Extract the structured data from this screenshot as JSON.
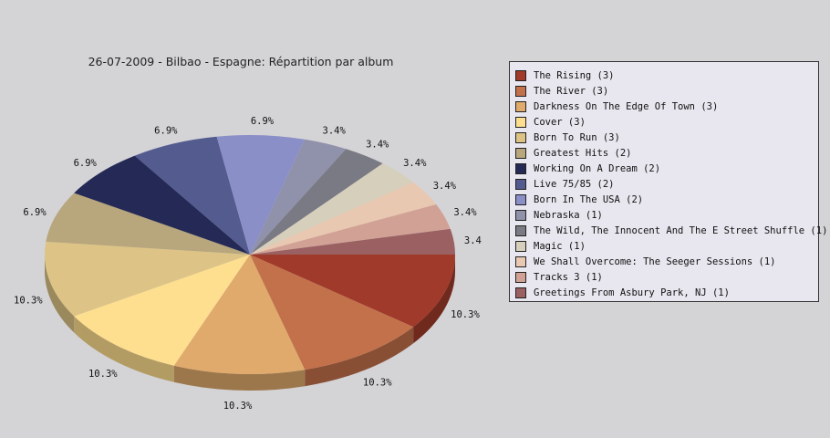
{
  "chart_data": {
    "type": "pie",
    "title": "26-07-2009 - Bilbao - Espagne:  Répartition par album",
    "legend_position": "right",
    "slices": [
      {
        "label": "The Rising (3)",
        "value": 3,
        "percent": "10.3%",
        "color": "#a03a2a"
      },
      {
        "label": "The River (3)",
        "value": 3,
        "percent": "10.3%",
        "color": "#c2714b"
      },
      {
        "label": "Darkness On The Edge Of Town (3)",
        "value": 3,
        "percent": "10.3%",
        "color": "#e0aa6c"
      },
      {
        "label": "Cover (3)",
        "value": 3,
        "percent": "10.3%",
        "color": "#fedf8f"
      },
      {
        "label": "Born To Run (3)",
        "value": 3,
        "percent": "10.3%",
        "color": "#ddc486"
      },
      {
        "label": "Greatest Hits (2)",
        "value": 2,
        "percent": "6.9%",
        "color": "#b8a67c"
      },
      {
        "label": "Working On A Dream (2)",
        "value": 2,
        "percent": "6.9%",
        "color": "#242a55"
      },
      {
        "label": "Live 75/85 (2)",
        "value": 2,
        "percent": "6.9%",
        "color": "#535b8f"
      },
      {
        "label": "Born In The USA (2)",
        "value": 2,
        "percent": "6.9%",
        "color": "#8b8fc7"
      },
      {
        "label": "Nebraska (1)",
        "value": 1,
        "percent": "3.4%",
        "color": "#9091ab"
      },
      {
        "label": "The Wild, The Innocent And The E Street Shuffle (1)",
        "value": 1,
        "percent": "3.4%",
        "color": "#7a7a84"
      },
      {
        "label": "Magic (1)",
        "value": 1,
        "percent": "3.4%",
        "color": "#d6cfbb"
      },
      {
        "label": "We Shall Overcome: The Seeger Sessions (1)",
        "value": 1,
        "percent": "3.4%",
        "color": "#e9c8b1"
      },
      {
        "label": "Tracks 3 (1)",
        "value": 1,
        "percent": "3.4%",
        "color": "#d2a195"
      },
      {
        "label": "Greetings From Asbury Park, NJ (1)",
        "value": 1,
        "percent": "3.4%",
        "color": "#9a6062"
      }
    ]
  }
}
